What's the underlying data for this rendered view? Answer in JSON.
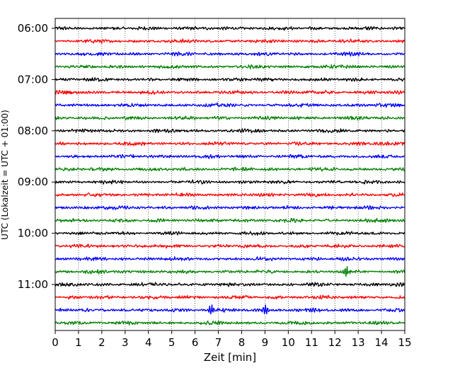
{
  "chart_data": {
    "type": "line",
    "title": "",
    "xlabel": "Zeit  [min]",
    "ylabel": "UTC (Lokalzeit = UTC + 01:00)",
    "xlim": [
      0,
      15
    ],
    "x_ticks": [
      0,
      1,
      2,
      3,
      4,
      5,
      6,
      7,
      8,
      9,
      10,
      11,
      12,
      13,
      14,
      15
    ],
    "x_tick_labels": [
      "0",
      "1",
      "2",
      "3",
      "4",
      "5",
      "6",
      "7",
      "8",
      "9",
      "10",
      "11",
      "12",
      "13",
      "14",
      "15"
    ],
    "y_tick_labels": [
      "06:00",
      "07:00",
      "08:00",
      "09:00",
      "10:00",
      "11:00"
    ],
    "grid": "vertical dotted",
    "trace_interval_minutes": 15,
    "start_time": "06:00",
    "trace_count": 24,
    "trace_colors": [
      "#000000",
      "#ff0000",
      "#0000ff",
      "#008000"
    ],
    "events": [
      {
        "trace": 22,
        "minute": 6.7,
        "description": "larger amplitude wavelet"
      },
      {
        "trace": 22,
        "minute": 9.0,
        "description": "larger amplitude wavelet"
      },
      {
        "trace": 19,
        "minute": 12.5,
        "description": "larger amplitude wavelet"
      }
    ]
  }
}
